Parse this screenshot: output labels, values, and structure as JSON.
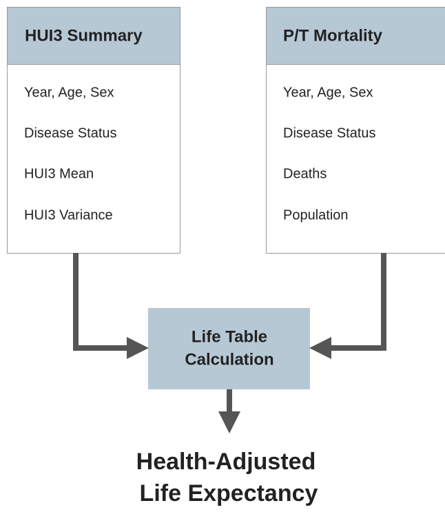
{
  "nodes": [
    {
      "title": "HUI3 Summary",
      "items": [
        "Year, Age, Sex",
        "Disease Status",
        "HUI3 Mean",
        "HUI3 Variance"
      ]
    },
    {
      "title": "P/T Mortality",
      "items": [
        "Year, Age, Sex",
        "Disease Status",
        "Deaths",
        "Population"
      ]
    }
  ],
  "process": {
    "lines": [
      "Life Table",
      "Calculation"
    ]
  },
  "output": {
    "lines": [
      "Health-Adjusted",
      "Life Expectancy"
    ]
  }
}
